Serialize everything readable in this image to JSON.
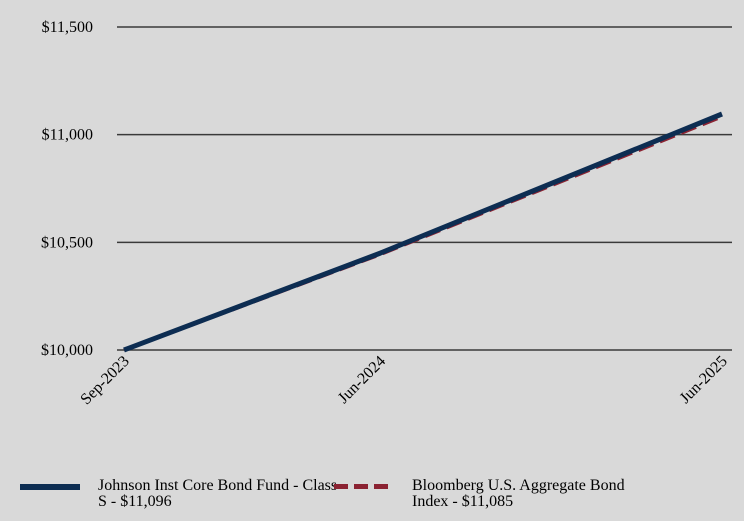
{
  "chart_data": {
    "type": "line",
    "x": [
      "Sep-2023",
      "Jun-2024",
      "Jun-2025"
    ],
    "y_ticks": [
      "$10,000",
      "$10,500",
      "$11,000",
      "$11,500"
    ],
    "ylim": [
      10000,
      11500
    ],
    "grid": "horizontal",
    "legend_position": "bottom",
    "series": [
      {
        "name": "Johnson Inst Core Bond Fund - Class S - $11,096",
        "values": [
          10000,
          10450,
          11096
        ],
        "color": "#0d2d52",
        "style": "solid"
      },
      {
        "name": "Bloomberg U.S. Aggregate Bond Index - $11,085",
        "values": [
          10000,
          10445,
          11085
        ],
        "color": "#8b2332",
        "style": "dashed"
      }
    ]
  }
}
